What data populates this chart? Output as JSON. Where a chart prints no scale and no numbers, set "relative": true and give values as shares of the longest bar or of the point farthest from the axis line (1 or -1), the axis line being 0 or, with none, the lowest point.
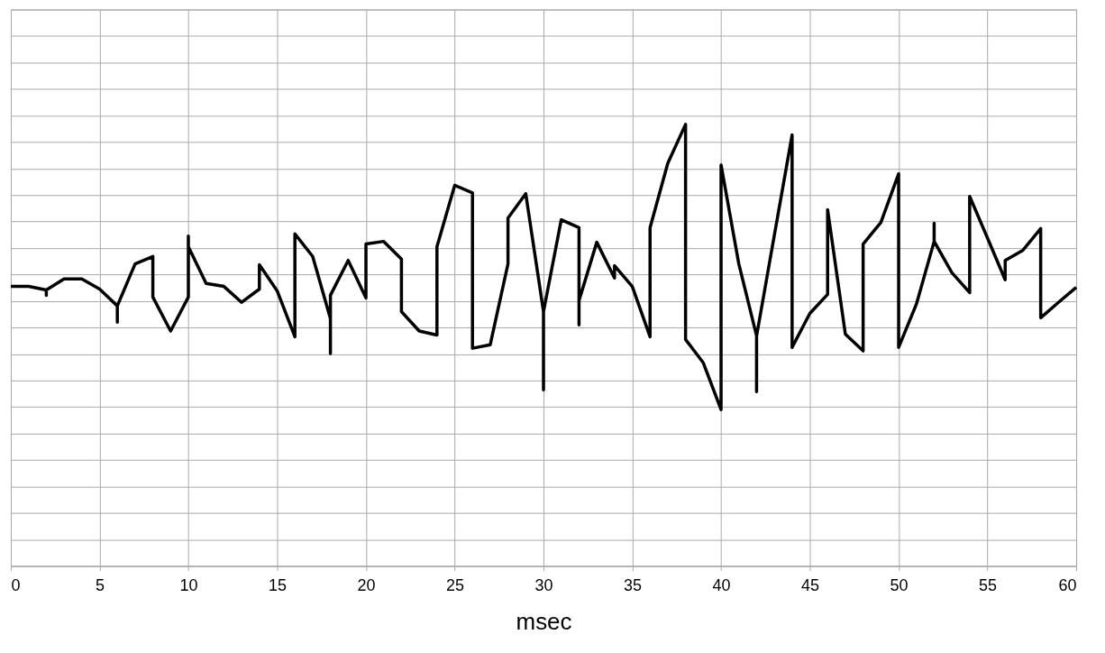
{
  "chart_data": {
    "type": "line",
    "xlabel": "msec",
    "relative": true,
    "grid": true,
    "tick_labels": "x",
    "marker": "none",
    "line_style": "solid",
    "xlim": [
      0,
      60
    ],
    "xticks": [
      0,
      5,
      10,
      15,
      20,
      25,
      30,
      35,
      40,
      45,
      50,
      55,
      60
    ],
    "x": [
      0,
      1,
      2,
      2,
      2,
      3,
      4,
      5,
      6,
      6,
      6,
      7,
      8,
      8,
      9,
      10,
      10,
      10,
      11,
      12,
      13,
      14,
      14,
      15,
      16,
      16,
      17,
      18,
      18,
      18,
      19,
      20,
      20,
      21,
      22,
      22,
      23,
      24,
      24,
      25,
      26,
      26,
      27,
      28,
      28,
      29,
      30,
      30,
      30,
      31,
      32,
      32,
      32,
      33,
      34,
      34,
      35,
      36,
      36,
      37,
      38,
      38,
      39,
      40,
      40,
      41,
      42,
      42,
      42,
      43,
      44,
      44,
      45,
      46,
      46,
      47,
      48,
      48,
      49,
      50,
      50,
      51,
      52,
      52,
      52,
      53,
      54,
      54,
      55,
      56,
      56,
      57,
      58,
      58,
      59,
      60
    ],
    "series": [
      {
        "color": "#000000",
        "values": [
          0.633,
          0.633,
          0.625,
          0.613,
          0.625,
          0.65,
          0.65,
          0.627,
          0.589,
          0.552,
          0.589,
          0.684,
          0.701,
          0.609,
          0.532,
          0.609,
          0.747,
          0.723,
          0.64,
          0.633,
          0.597,
          0.627,
          0.682,
          0.623,
          0.519,
          0.752,
          0.701,
          0.56,
          0.481,
          0.613,
          0.692,
          0.607,
          0.729,
          0.735,
          0.695,
          0.576,
          0.532,
          0.523,
          0.723,
          0.862,
          0.845,
          0.493,
          0.501,
          0.684,
          0.788,
          0.843,
          0.576,
          0.399,
          0.576,
          0.784,
          0.766,
          0.546,
          0.601,
          0.733,
          0.652,
          0.68,
          0.633,
          0.519,
          0.766,
          0.912,
          1,
          0.513,
          0.46,
          0.354,
          0.908,
          0.684,
          0.521,
          0.395,
          0.521,
          0.749,
          0.976,
          0.495,
          0.572,
          0.615,
          0.807,
          0.525,
          0.487,
          0.729,
          0.778,
          0.888,
          0.495,
          0.593,
          0.735,
          0.776,
          0.735,
          0.664,
          0.619,
          0.837,
          0.743,
          0.648,
          0.692,
          0.715,
          0.764,
          0.562,
          0.597,
          0.631
        ]
      }
    ]
  }
}
